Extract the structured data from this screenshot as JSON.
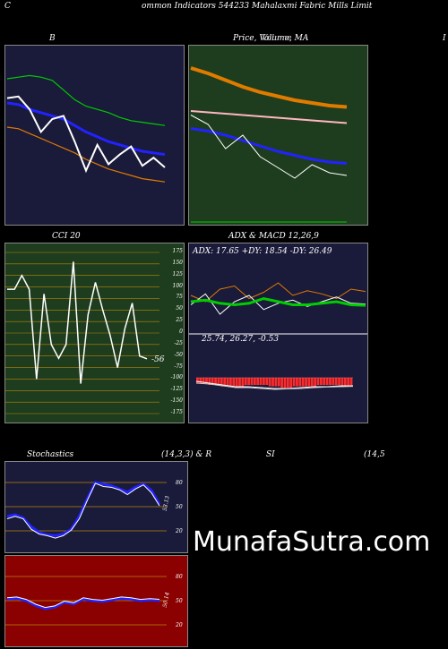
{
  "page_title": "ommon  Indicators 544233 Mahalaxmi  Fabric Mills Limit",
  "edge_left": "C",
  "edge_right": "I",
  "watermark": "MunafaSutra.com",
  "panels": {
    "bb": {
      "title": "B"
    },
    "price": {
      "title": "Price,  Volume,  MA",
      "overlay": "Volume"
    },
    "cci": {
      "title": "CCI 20",
      "ticks": [
        "175",
        "150",
        "125",
        "100",
        "75",
        "50",
        "25",
        "0",
        "-25",
        "-50",
        "-75",
        "-100",
        "-125",
        "-150",
        "-175"
      ],
      "last": "-56"
    },
    "adx": {
      "title": "ADX  & MACD 12,26,9",
      "readout": "ADX: 17.65  +DY: 18.54  -DY: 26.49"
    },
    "macd": {
      "readout": "25.74,  26.27,  -0.53"
    },
    "stoch": {
      "title_left": "Stochastics",
      "title_mid": "(14,3,3) & R",
      "title_right": "SI",
      "title_far": "(14,5",
      "ticks": [
        "80",
        "50",
        "20"
      ],
      "last": "53.13"
    },
    "rsi": {
      "ticks": [
        "80",
        "50",
        "20"
      ],
      "last": "50.14"
    }
  },
  "colors": {
    "bg_navy": "#1a1a3a",
    "bg_green": "#1e3d1e",
    "bg_red": "#8b0000",
    "green": "#00cc00",
    "blue": "#2222ff",
    "orange": "#e07b00",
    "white": "#ffffff"
  },
  "chart_data": [
    {
      "type": "line",
      "panel": "bollinger",
      "series": [
        {
          "color": "#00cc00",
          "values": [
            25.5,
            25.6,
            25.7,
            25.6,
            25.4,
            24.8,
            24.2,
            23.8,
            23.6,
            23.4,
            23.1,
            22.9,
            22.8,
            22.7,
            22.6
          ]
        },
        {
          "color": "#2222ff",
          "values": [
            24.0,
            23.9,
            23.6,
            23.4,
            23.2,
            23.0,
            22.6,
            22.2,
            21.9,
            21.6,
            21.4,
            21.2,
            21.0,
            20.9,
            20.8
          ]
        },
        {
          "color": "#e07b00",
          "values": [
            22.5,
            22.4,
            22.1,
            21.8,
            21.5,
            21.2,
            20.9,
            20.5,
            20.2,
            19.9,
            19.7,
            19.5,
            19.3,
            19.2,
            19.1
          ]
        },
        {
          "color": "#ffffff",
          "values": [
            24.3,
            24.4,
            23.6,
            22.2,
            23.0,
            23.2,
            21.6,
            19.8,
            21.4,
            20.2,
            20.8,
            21.3,
            20.1,
            20.6,
            20.0
          ]
        }
      ]
    },
    {
      "type": "line",
      "panel": "price",
      "series": [
        {
          "color": "#e07b00",
          "values": [
            27.0,
            26.6,
            26.1,
            25.6,
            25.2,
            24.9,
            24.6,
            24.4,
            24.2,
            24.1
          ]
        },
        {
          "color": "#ffb6c1",
          "values": [
            23.8,
            23.7,
            23.6,
            23.5,
            23.4,
            23.3,
            23.2,
            23.1,
            23.0,
            22.9
          ]
        },
        {
          "color": "#2222ff",
          "values": [
            22.5,
            22.3,
            22.0,
            21.6,
            21.2,
            20.8,
            20.5,
            20.2,
            20.0,
            19.9
          ]
        },
        {
          "color": "#ffffff",
          "values": [
            23.5,
            22.8,
            21.0,
            22.0,
            20.4,
            19.6,
            18.8,
            19.8,
            19.2,
            19.0
          ]
        }
      ]
    },
    {
      "type": "line",
      "panel": "cci",
      "ylim": [
        -175,
        175
      ],
      "values": [
        95,
        95,
        125,
        95,
        -100,
        85,
        -25,
        -55,
        -25,
        155,
        -110,
        40,
        110,
        50,
        -5,
        -75,
        10,
        65,
        -50,
        -56
      ]
    },
    {
      "type": "line",
      "panel": "adx",
      "series": [
        {
          "name": "ADX",
          "color": "#00cc00",
          "values": [
            20,
            21,
            19,
            18,
            19,
            22,
            20,
            18,
            18,
            19,
            20,
            18,
            17.65
          ]
        },
        {
          "name": "+DY",
          "color": "#ffffff",
          "values": [
            18,
            25,
            12,
            20,
            24,
            15,
            19,
            21,
            17,
            20,
            23,
            19,
            18.54
          ]
        },
        {
          "name": "-DY",
          "color": "#e07b00",
          "values": [
            24,
            20,
            28,
            30,
            22,
            26,
            32,
            24,
            27,
            25,
            22,
            28,
            26.49
          ]
        }
      ]
    },
    {
      "type": "bar",
      "panel": "macd",
      "values": [
        -0.4,
        -0.5,
        -0.6,
        -0.6,
        -0.5,
        -0.5,
        -0.6,
        -0.7,
        -0.6,
        -0.6,
        -0.5,
        -0.5,
        -0.53
      ]
    },
    {
      "type": "line",
      "panel": "stochastics",
      "ylim": [
        0,
        100
      ],
      "values": [
        38,
        40,
        36,
        25,
        18,
        15,
        14,
        16,
        22,
        38,
        60,
        80,
        78,
        76,
        72,
        68,
        74,
        78,
        70,
        53.13
      ]
    },
    {
      "type": "line",
      "panel": "rsi",
      "ylim": [
        0,
        100
      ],
      "values": [
        52,
        53,
        50,
        44,
        40,
        42,
        48,
        46,
        52,
        50,
        49,
        51,
        53,
        52,
        50,
        51,
        50.14
      ]
    }
  ]
}
